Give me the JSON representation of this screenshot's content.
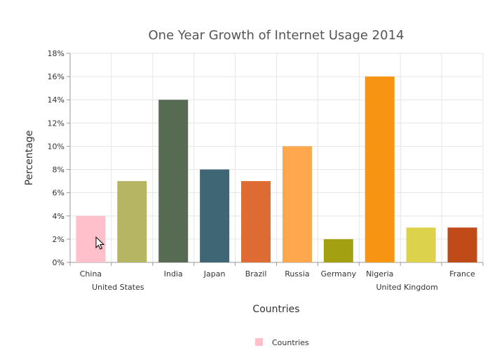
{
  "chart_data": {
    "type": "bar",
    "title": "One Year Growth of Internet Usage 2014",
    "xlabel": "Countries",
    "ylabel": "Percentage",
    "categories": [
      "China",
      "United States",
      "India",
      "Japan",
      "Brazil",
      "Russia",
      "Germany",
      "Nigeria",
      "United Kingdom",
      "France"
    ],
    "series": [
      {
        "name": "Countries",
        "values": [
          4,
          7,
          14,
          8,
          7,
          10,
          2,
          16,
          3,
          3
        ]
      }
    ],
    "colors": [
      "#FFC0CB",
      "#B5B564",
      "#566B52",
      "#3F6675",
      "#DD6B33",
      "#FFA74C",
      "#A3A111",
      "#F79411",
      "#DDD24B",
      "#C04A18"
    ],
    "ylim": [
      0,
      18
    ],
    "ytick_step": 2,
    "y_unit_suffix": "%",
    "grid": true,
    "legend_position": "bottom"
  }
}
